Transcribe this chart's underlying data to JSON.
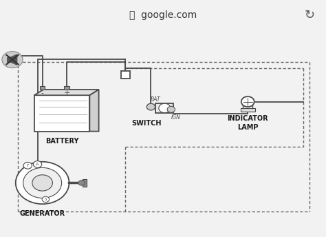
{
  "bg_color": "#f2f2f2",
  "diagram_bg": "#ffffff",
  "title_bar_color": "#e5e5e5",
  "title_text": "  google.com",
  "line_color": "#4a4a4a",
  "dashed_line_color": "#666666",
  "text_color": "#1a1a1a",
  "battery_label": "BATTERY",
  "generator_label": "GENERATOR",
  "switch_label": "SWITCH",
  "indicator_label": "INDICATOR\nLAMP",
  "bat_label": "BAT",
  "ign_label": "IGN",
  "lock_icon": "🔒",
  "refresh_icon": "↻"
}
